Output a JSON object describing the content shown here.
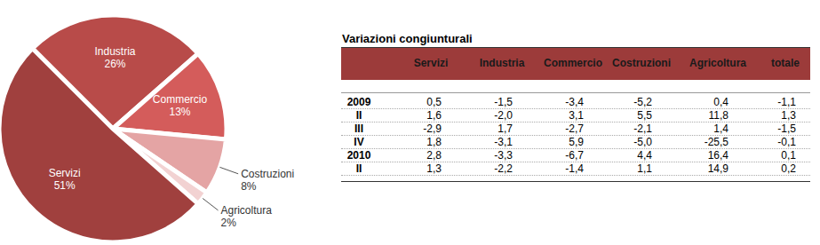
{
  "chart_data": {
    "type": "pie",
    "categories": [
      "Industria",
      "Commercio",
      "Costruzioni",
      "Agricoltura",
      "Servizi"
    ],
    "values": [
      26,
      13,
      8,
      2,
      51
    ],
    "value_labels": [
      "26%",
      "13%",
      "8%",
      "2%",
      "51%"
    ],
    "colors": [
      "#b84b49",
      "#d45c5b",
      "#e4a4a4",
      "#f2d2d2",
      "#a0403e"
    ],
    "data_labels": true
  },
  "table": {
    "title": "Variazioni congiunturali",
    "columns": [
      "Servizi",
      "Industria",
      "Commercio",
      "Costruzioni",
      "Agricoltura",
      "totale"
    ],
    "rows": [
      {
        "label": "2009",
        "values": [
          "0,5",
          "-1,5",
          "-3,4",
          "-5,2",
          "0,4",
          "-1,1"
        ]
      },
      {
        "label": "II",
        "values": [
          "1,6",
          "-2,0",
          "3,1",
          "5,5",
          "11,8",
          "1,3"
        ]
      },
      {
        "label": "III",
        "values": [
          "-2,9",
          "1,7",
          "-2,7",
          "-2,1",
          "1,4",
          "-1,5"
        ]
      },
      {
        "label": "IV",
        "values": [
          "1,8",
          "-3,1",
          "5,9",
          "-5,0",
          "-25,5",
          "-0,1"
        ]
      },
      {
        "label": "2010",
        "values": [
          "2,8",
          "-3,3",
          "-6,7",
          "4,4",
          "16,4",
          "0,1"
        ]
      },
      {
        "label": "II",
        "values": [
          "1,3",
          "-2,2",
          "-1,4",
          "1,1",
          "14,9",
          "0,2"
        ]
      }
    ]
  }
}
